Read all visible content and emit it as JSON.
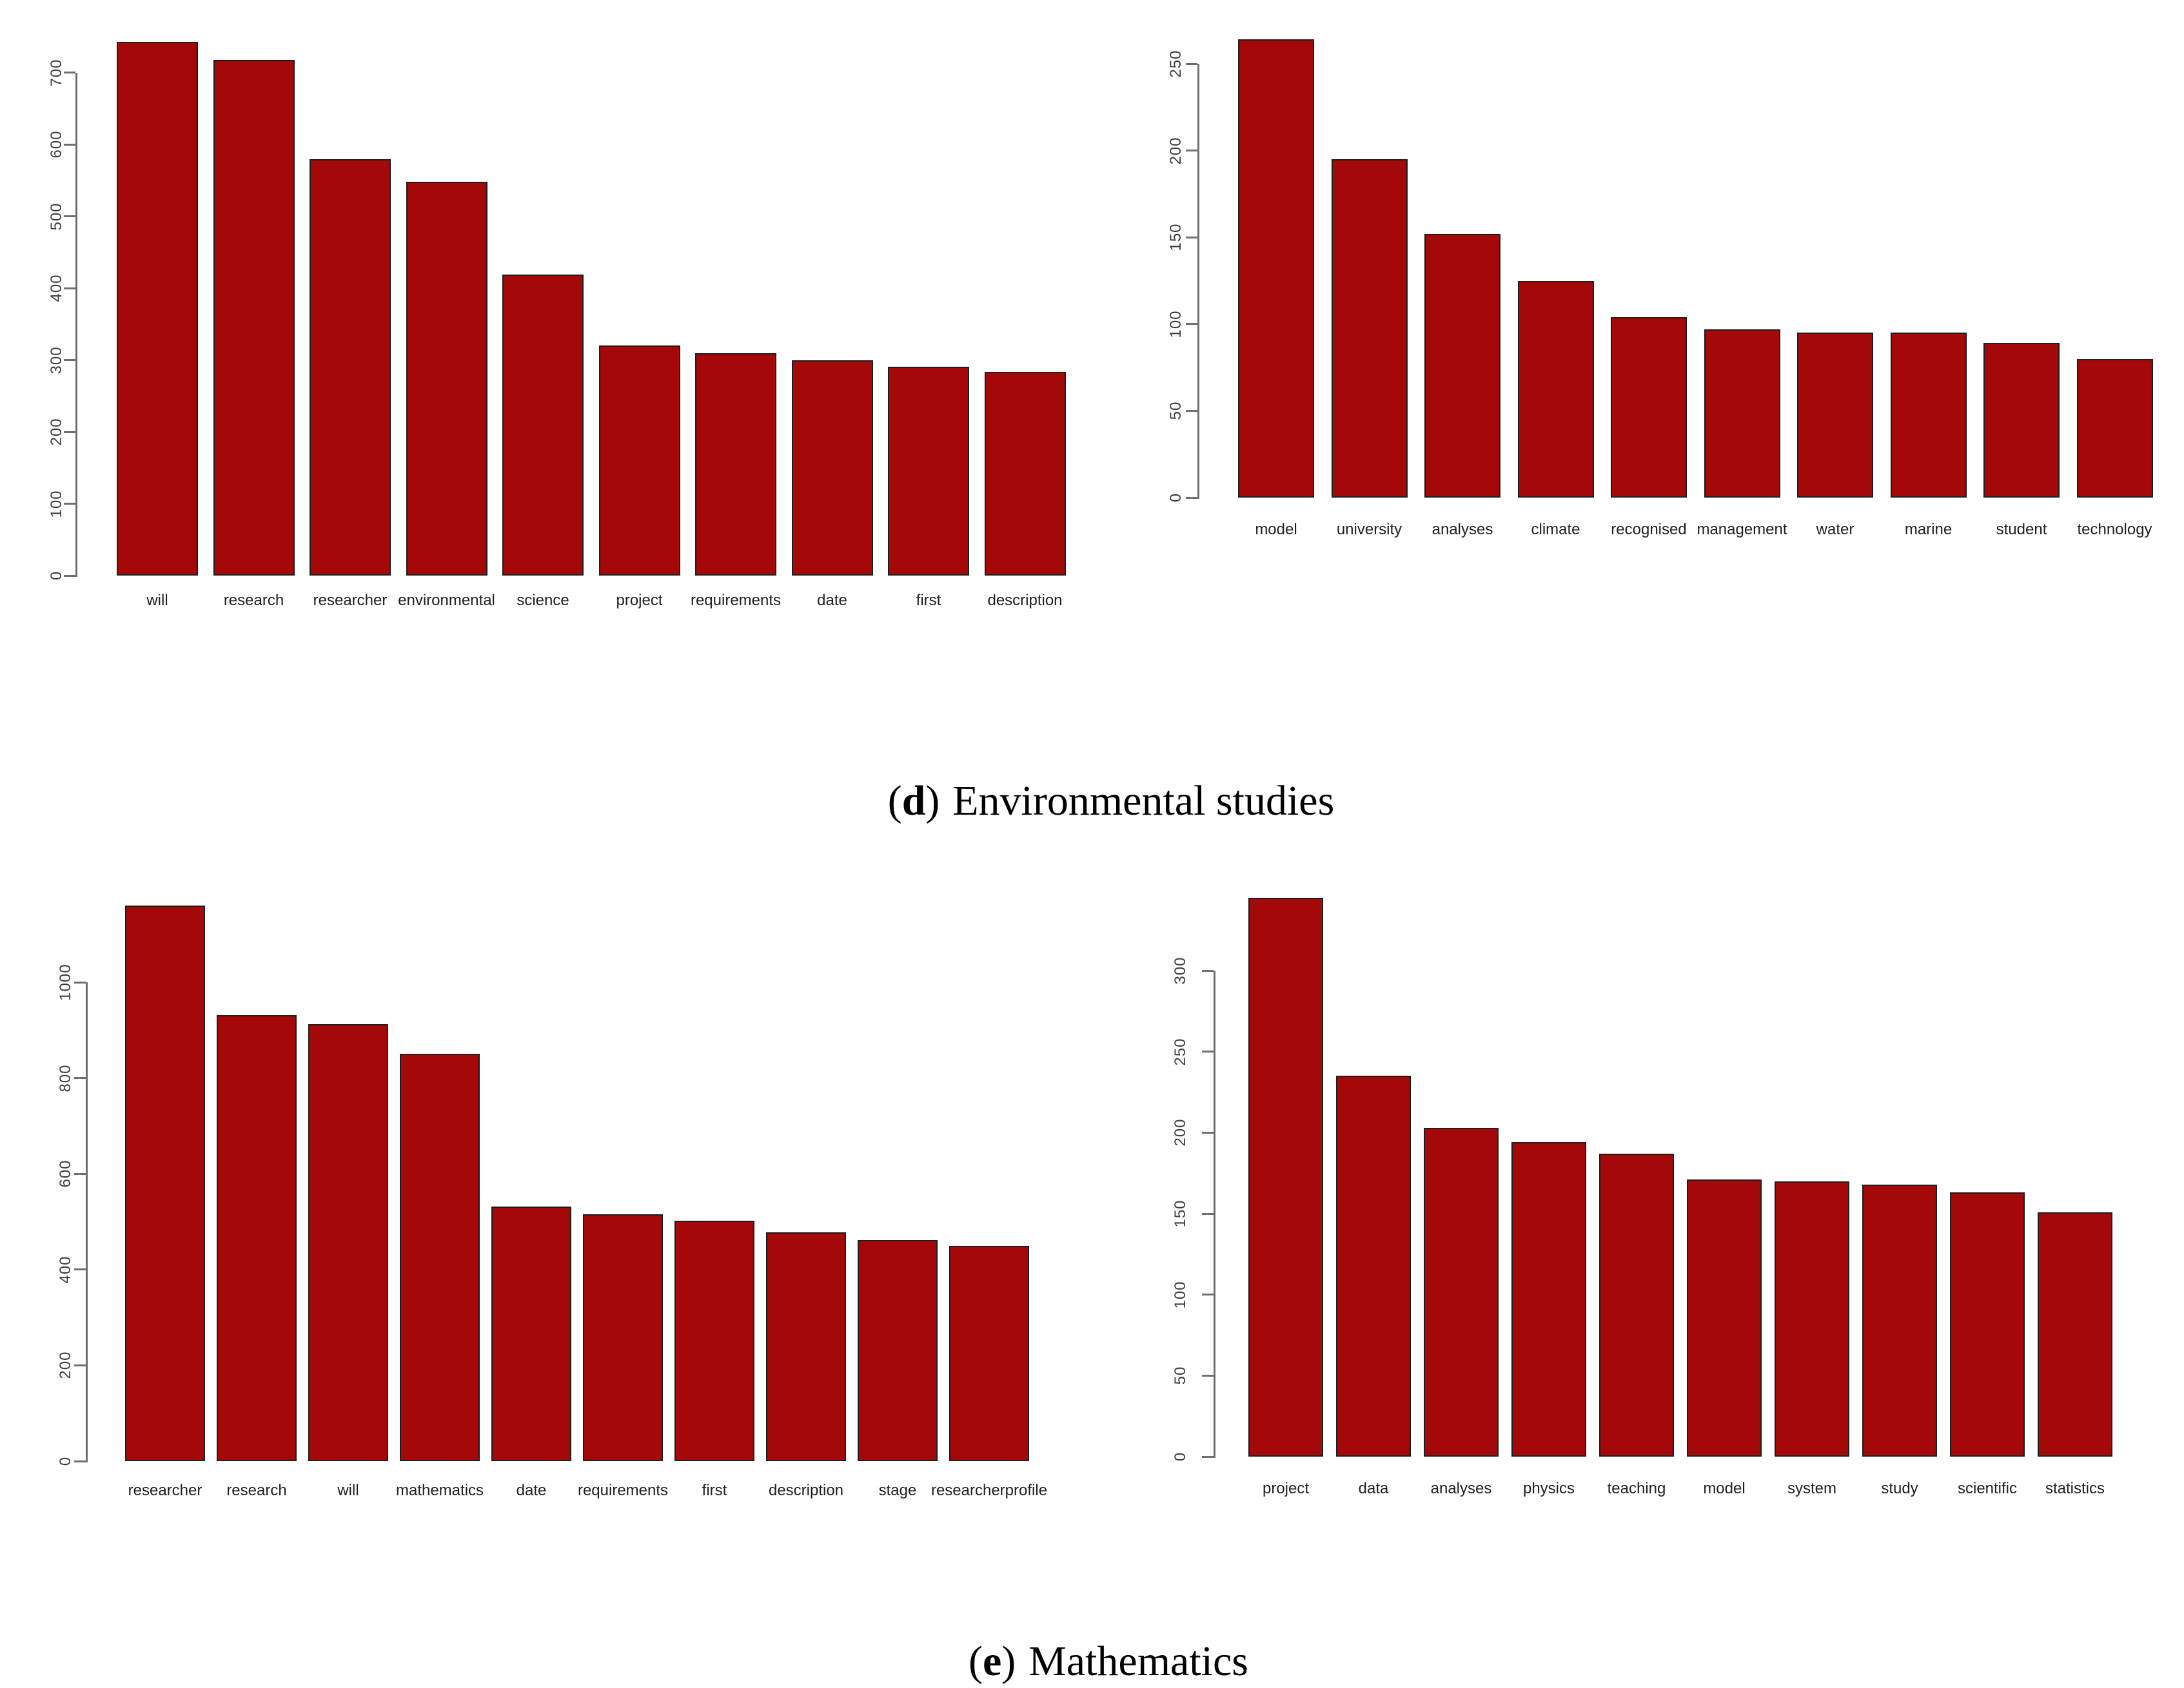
{
  "figure": {
    "background": "#ffffff",
    "description_visible_text_only": true
  },
  "style": {
    "bar_fill": "#a50808",
    "bar_border": "#1e1e1e",
    "axis_color": "#6f6f6f",
    "tick_label_color": "#3d3d3d",
    "category_label_color": "#1f1f1f",
    "caption_color": "#000000"
  },
  "captions": {
    "d": {
      "open": "(",
      "letter": "d",
      "close": ")",
      "label": "Environmental studies"
    },
    "e": {
      "open": "(",
      "letter": "e",
      "close": ")",
      "label": "Mathematics"
    }
  },
  "chart_data": [
    {
      "type": "bar",
      "panel": "d",
      "position": "top-left",
      "title": "",
      "xlabel": "",
      "ylabel": "",
      "categories": [
        "will",
        "research",
        "researcher",
        "environmental",
        "science",
        "project",
        "requirements",
        "date",
        "first",
        "description"
      ],
      "values": [
        743,
        718,
        580,
        548,
        419,
        320,
        310,
        300,
        291,
        284
      ],
      "yticks": [
        0,
        100,
        200,
        300,
        400,
        500,
        600,
        700
      ],
      "ylim": [
        0,
        760
      ],
      "grid": false,
      "legend": "none",
      "bar_color": "#a50808"
    },
    {
      "type": "bar",
      "panel": "d",
      "position": "top-right",
      "title": "",
      "xlabel": "",
      "ylabel": "",
      "categories": [
        "model",
        "university",
        "analyses",
        "climate",
        "recognised",
        "management",
        "water",
        "marine",
        "student",
        "technology"
      ],
      "values": [
        264,
        195,
        152,
        125,
        104,
        97,
        95,
        95,
        89,
        80
      ],
      "yticks": [
        0,
        50,
        100,
        150,
        200,
        250
      ],
      "ylim": [
        0,
        280
      ],
      "grid": false,
      "legend": "none",
      "bar_color": "#a50808"
    },
    {
      "type": "bar",
      "panel": "e",
      "position": "bottom-left",
      "title": "",
      "xlabel": "",
      "ylabel": "",
      "categories": [
        "researcher",
        "research",
        "will",
        "mathematics",
        "date",
        "requirements",
        "first",
        "description",
        "stage",
        "researcherprofile"
      ],
      "values": [
        1160,
        932,
        912,
        850,
        532,
        515,
        502,
        478,
        462,
        449
      ],
      "yticks": [
        0,
        200,
        400,
        600,
        800,
        1000
      ],
      "ylim": [
        0,
        1190
      ],
      "grid": false,
      "legend": "none",
      "bar_color": "#a50808"
    },
    {
      "type": "bar",
      "panel": "e",
      "position": "bottom-right",
      "title": "",
      "xlabel": "",
      "ylabel": "",
      "categories": [
        "project",
        "data",
        "analyses",
        "physics",
        "teaching",
        "model",
        "system",
        "study",
        "scientific",
        "statistics"
      ],
      "values": [
        345,
        235,
        203,
        194,
        187,
        171,
        170,
        168,
        163,
        151
      ],
      "yticks": [
        0,
        50,
        100,
        150,
        200,
        250,
        300
      ],
      "ylim": [
        0,
        355
      ],
      "grid": false,
      "legend": "none",
      "bar_color": "#a50808"
    }
  ]
}
